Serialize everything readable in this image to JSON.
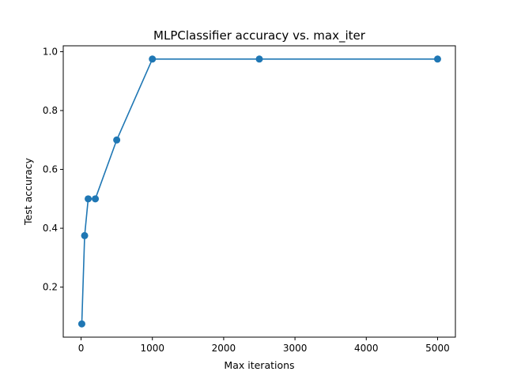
{
  "chart_data": {
    "type": "line",
    "title": "MLPClassifier accuracy vs. max_iter",
    "xlabel": "Max iterations",
    "ylabel": "Test accuracy",
    "xlim": [
      -250,
      5250
    ],
    "ylim": [
      0.03,
      1.02
    ],
    "xticks": [
      0,
      1000,
      2000,
      3000,
      4000,
      5000
    ],
    "xtick_labels": [
      "0",
      "1000",
      "2000",
      "3000",
      "4000",
      "5000"
    ],
    "yticks": [
      0.2,
      0.4,
      0.6,
      0.8,
      1.0
    ],
    "ytick_labels": [
      "0.2",
      "0.4",
      "0.6",
      "0.8",
      "1.0"
    ],
    "grid": false,
    "color": "#1f77b4",
    "marker": "circle",
    "x": [
      10,
      50,
      100,
      200,
      500,
      1000,
      2500,
      5000
    ],
    "y": [
      0.075,
      0.375,
      0.5,
      0.5,
      0.7,
      0.975,
      0.975,
      0.975
    ]
  }
}
